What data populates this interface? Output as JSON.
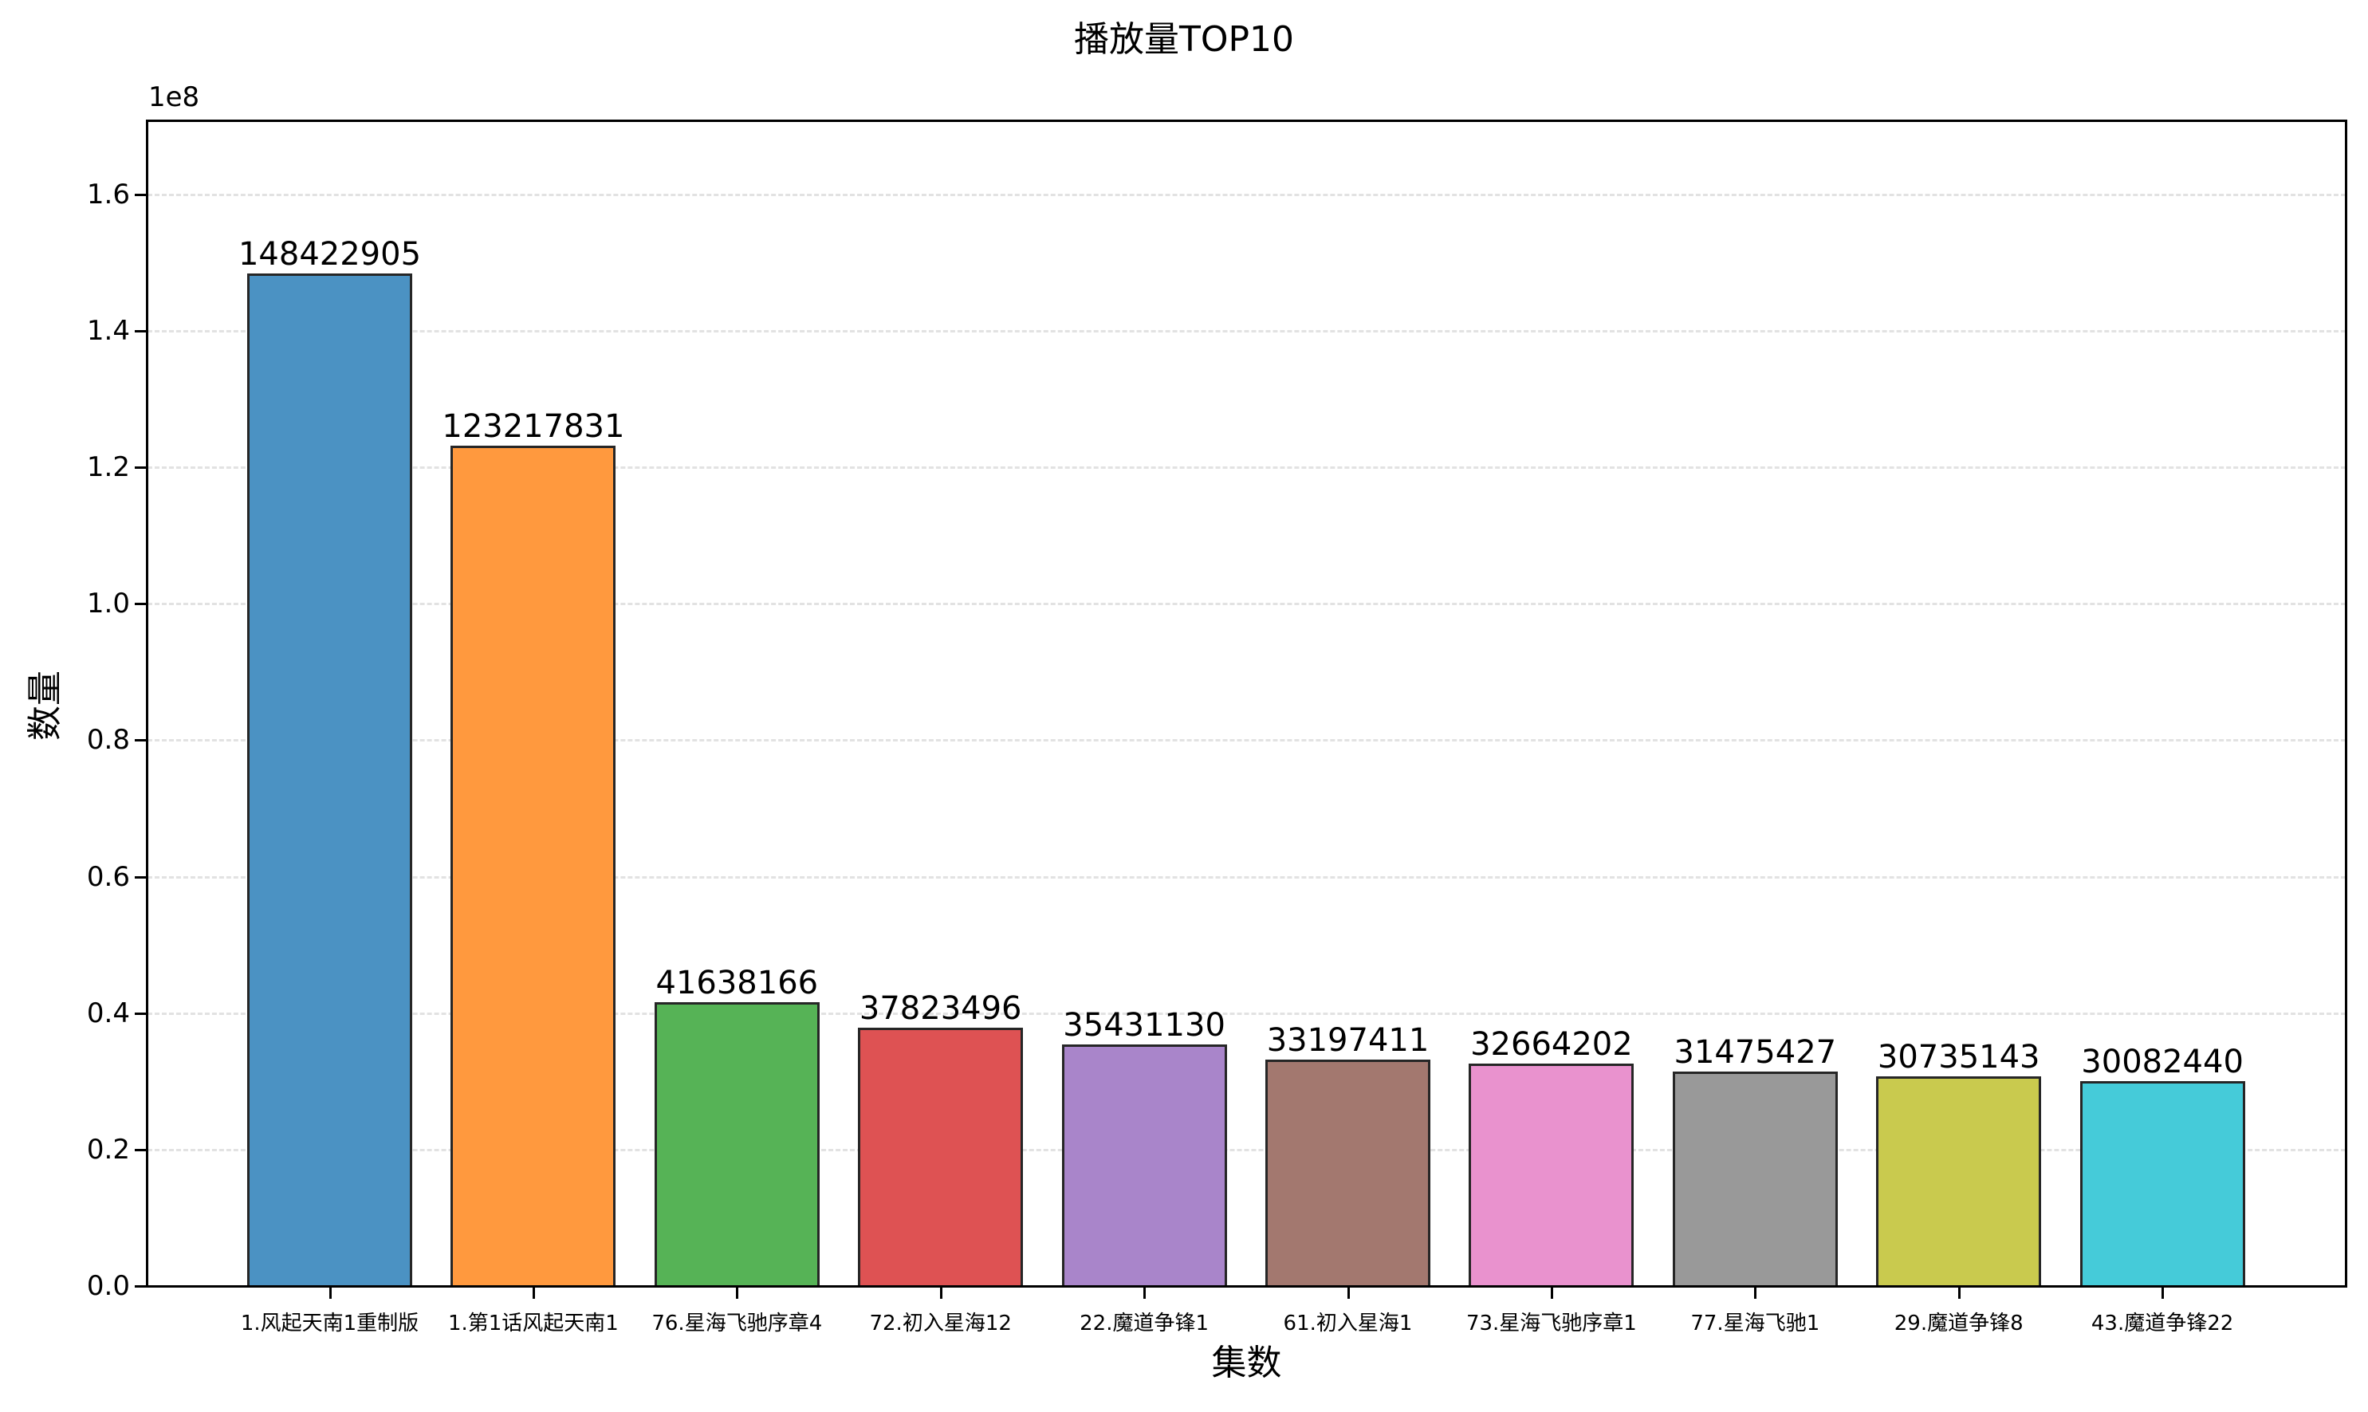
{
  "chart_data": {
    "type": "bar",
    "title": "播放量TOP10",
    "xlabel": "集数",
    "ylabel": "数量",
    "y_offset_text": "1e8",
    "ylim": [
      0,
      170750000
    ],
    "yticks": [
      0,
      20000000,
      40000000,
      60000000,
      80000000,
      100000000,
      120000000,
      140000000,
      160000000
    ],
    "ytick_labels": [
      "0.0",
      "0.2",
      "0.4",
      "0.6",
      "0.8",
      "1.0",
      "1.2",
      "1.4",
      "1.6"
    ],
    "grid": {
      "axis": "y",
      "style": "dashed"
    },
    "categories": [
      "1.风起天南1重制版",
      "1.第1话风起天南1",
      "76.星海飞驰序章4",
      "72.初入星海12",
      "22.魔道争锋1",
      "61.初入星海1",
      "73.星海飞驰序章1",
      "77.星海飞驰1",
      "29.魔道争锋8",
      "43.魔道争锋22"
    ],
    "values": [
      148422905,
      123217831,
      41638166,
      37823496,
      35431130,
      33197411,
      32664202,
      31475427,
      30735143,
      30082440
    ],
    "value_labels": [
      "148422905",
      "123217831",
      "41638166",
      "37823496",
      "35431130",
      "33197411",
      "32664202",
      "31475427",
      "30735143",
      "30082440"
    ],
    "colors": [
      "#4b92c3",
      "#ff993e",
      "#56b356",
      "#de5253",
      "#a985ca",
      "#a3786f",
      "#e992ce",
      "#999999",
      "#c9ca4e",
      "#45cbd9"
    ]
  }
}
